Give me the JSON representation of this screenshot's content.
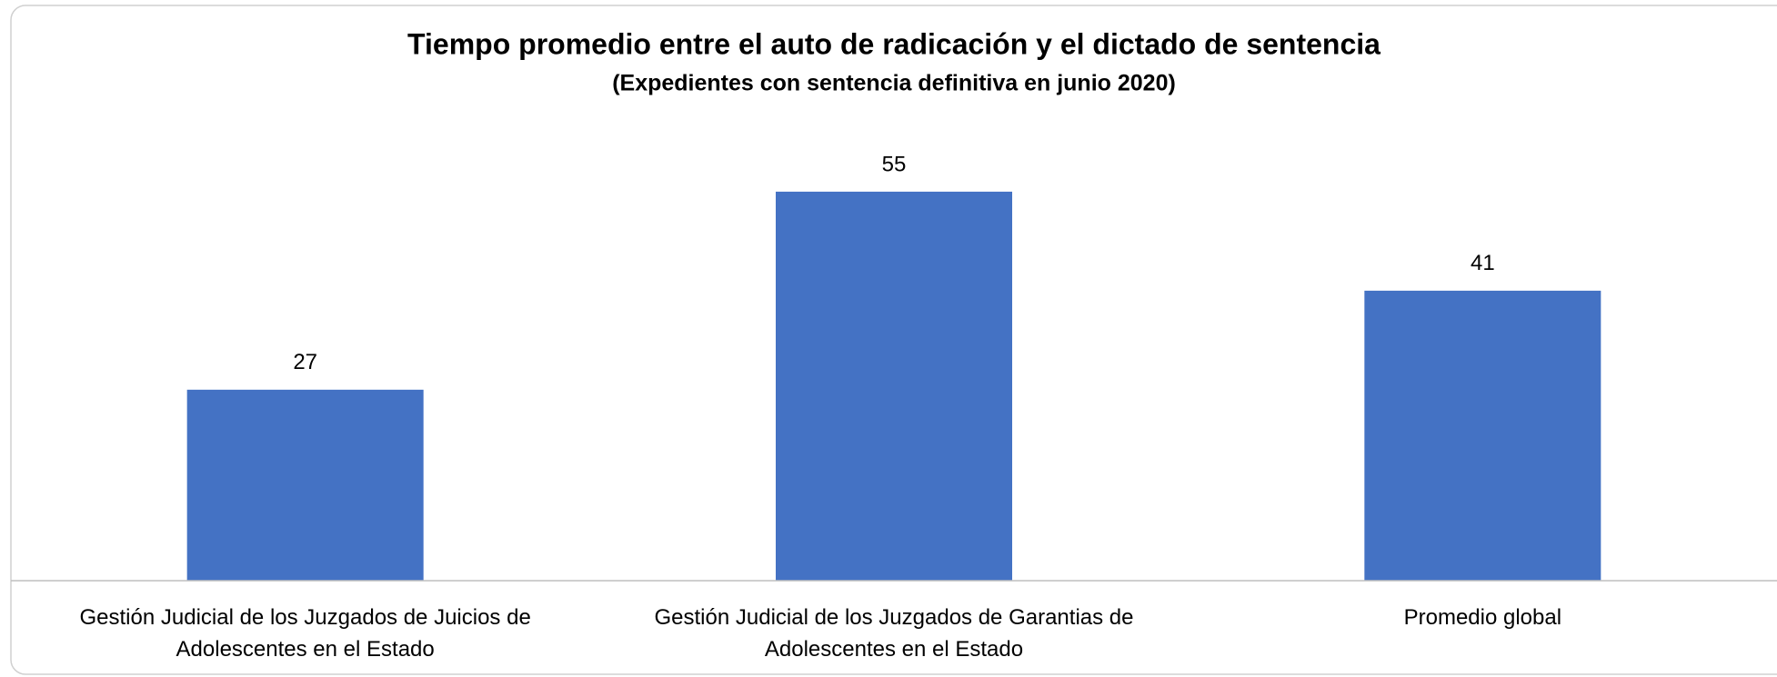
{
  "chart_data": {
    "type": "bar",
    "title": "Tiempo promedio entre el auto de radicación y el dictado de sentencia",
    "subtitle": "(Expedientes con sentencia definitiva en junio 2020)",
    "categories": [
      "Gestión Judicial de los Juzgados de Juicios de Adolescentes en el Estado",
      "Gestión Judicial de los Juzgados de Garantias de Adolescentes en el Estado",
      "Promedio global"
    ],
    "values": [
      27,
      55,
      41
    ],
    "color": "#4472c4",
    "ylim": [
      0,
      60
    ]
  }
}
